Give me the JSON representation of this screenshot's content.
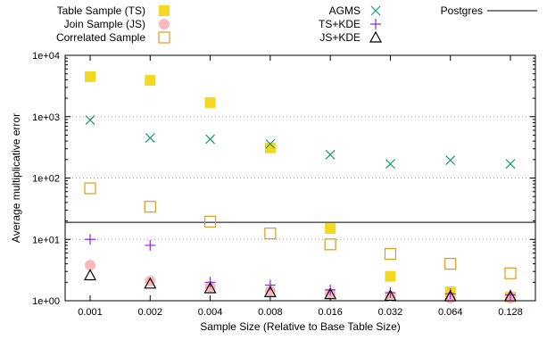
{
  "chart_data": {
    "type": "scatter",
    "xlabel": "Sample Size (Relative to Base Table Size)",
    "ylabel": "Average multiplicative error",
    "x_scale": "log",
    "y_scale": "log",
    "ylim": [
      1,
      10000
    ],
    "categories": [
      "0.001",
      "0.002",
      "0.004",
      "0.008",
      "0.016",
      "0.032",
      "0.064",
      "0.128"
    ],
    "yticks": [
      1,
      10,
      100,
      1000,
      10000
    ],
    "ytick_labels": [
      "1e+00",
      "1e+01",
      "1e+02",
      "1e+03",
      "1e+04"
    ],
    "grid": "dotted, y-major",
    "legend_position": "top",
    "series": [
      {
        "name": "Table Sample (TS)",
        "marker": "filled-square",
        "color": "#f2d820",
        "values": [
          4500,
          3900,
          1700,
          310,
          15,
          2.5,
          1.4,
          1.15
        ]
      },
      {
        "name": "Join Sample (JS)",
        "marker": "filled-circle",
        "color": "#f7b9b9",
        "values": [
          3.8,
          2.1,
          1.7,
          1.45,
          1.3,
          1.2,
          1.1,
          1.1
        ]
      },
      {
        "name": "Correlated Sample",
        "marker": "open-square",
        "color": "#e39a17",
        "values": [
          68,
          34,
          19.5,
          12.5,
          8.3,
          5.8,
          4,
          2.8
        ]
      },
      {
        "name": "AGMS",
        "marker": "x",
        "color": "#1a9a6a",
        "values": [
          880,
          450,
          430,
          360,
          240,
          170,
          195,
          170
        ]
      },
      {
        "name": "TS+KDE",
        "marker": "plus",
        "color": "#9427d6",
        "values": [
          10,
          8,
          2,
          1.8,
          1.5,
          1.35,
          1.3,
          1.25
        ]
      },
      {
        "name": "JS+KDE",
        "marker": "open-triangle",
        "color": "#000000",
        "values": [
          2.6,
          1.9,
          1.6,
          1.38,
          1.28,
          1.2,
          1.18,
          1.18
        ]
      }
    ],
    "reference_lines": [
      {
        "name": "Postgres",
        "value": 19,
        "color": "#000000"
      }
    ]
  }
}
